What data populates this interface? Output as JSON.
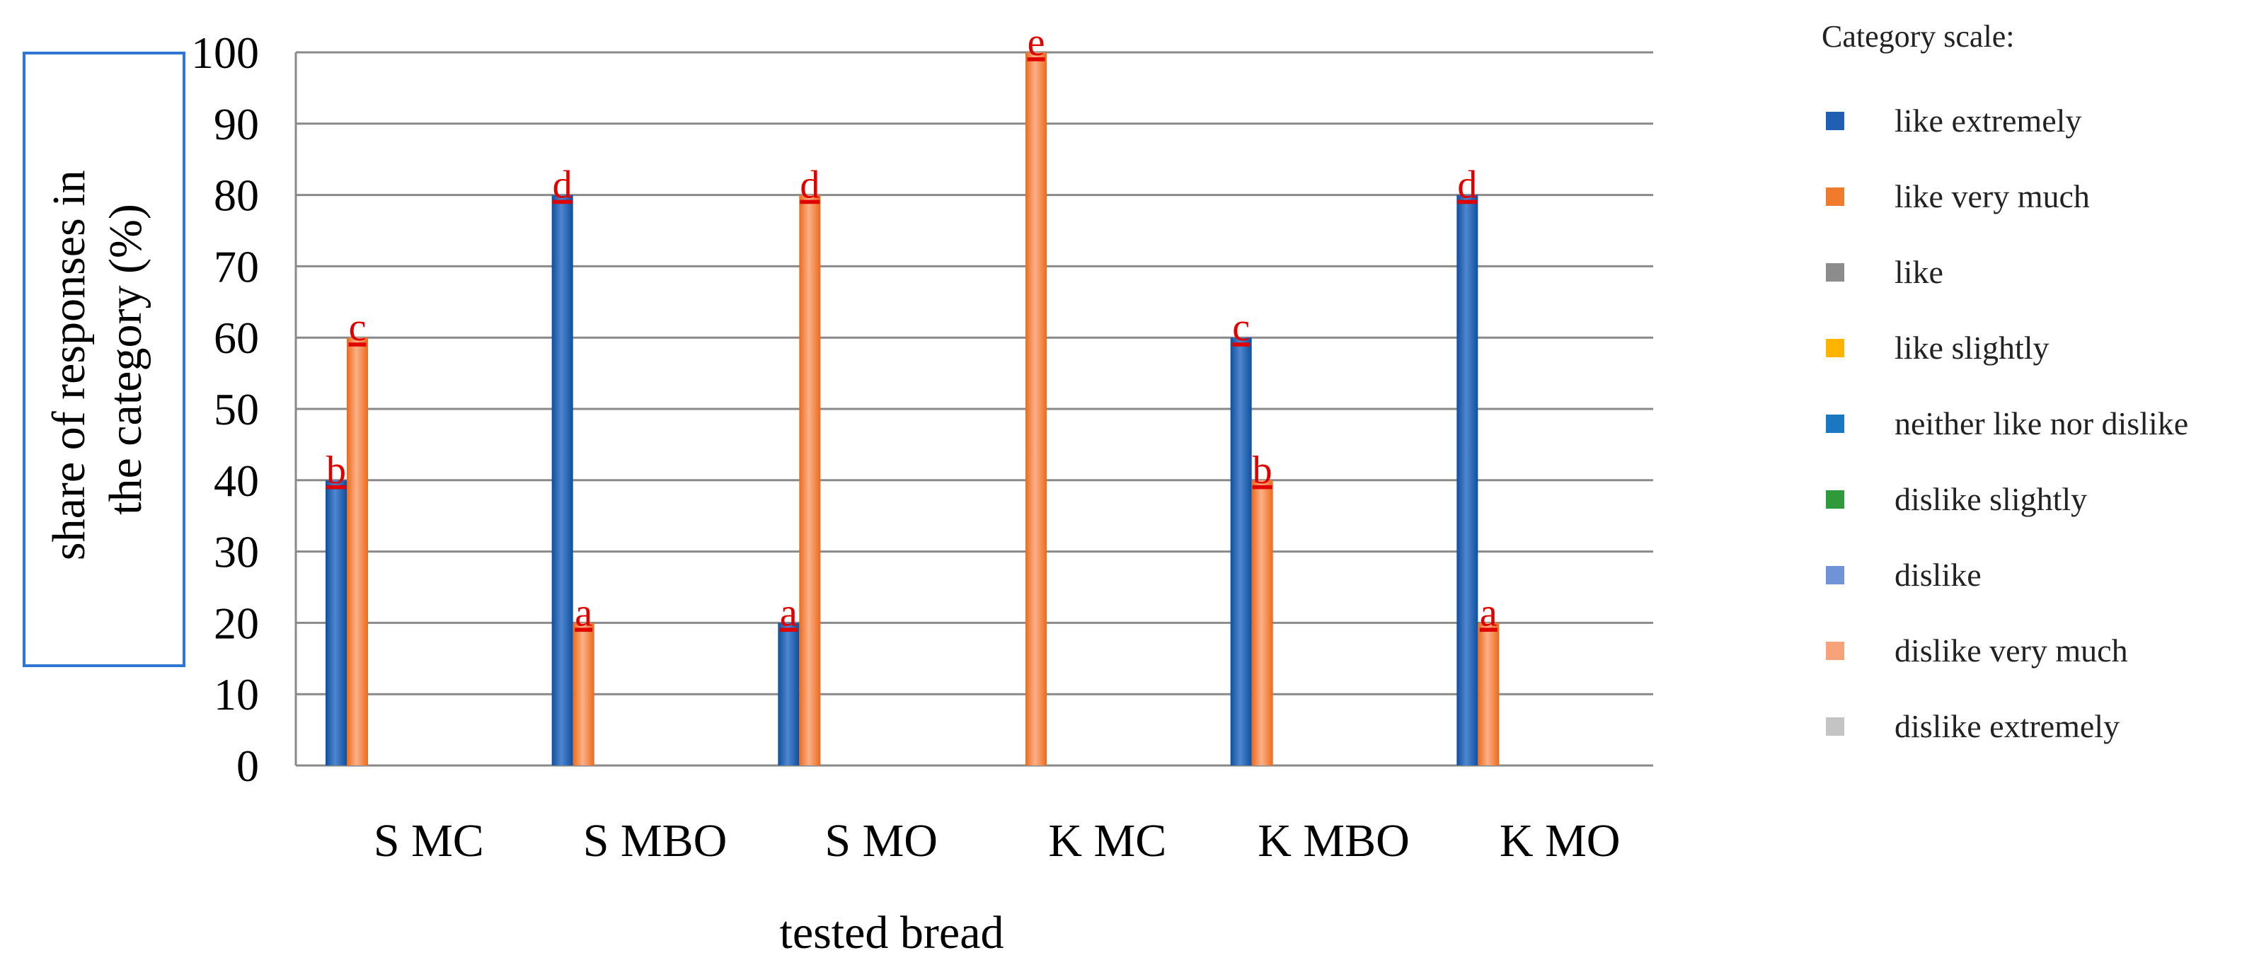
{
  "chart_data": {
    "type": "bar",
    "title": "",
    "xlabel": "tested bread",
    "ylabel": "share of responses in the category (%)",
    "ylim": [
      0,
      100
    ],
    "yticks": [
      0,
      10,
      20,
      30,
      40,
      50,
      60,
      70,
      80,
      90,
      100
    ],
    "categories": [
      "S MC",
      "S MBO",
      "S MO",
      "K MC",
      "K MBO",
      "K MO"
    ],
    "legend_title": "Category scale:",
    "legend_position": "right",
    "series": [
      {
        "name": "like extremely",
        "color": "#1f5fb4",
        "values": [
          40,
          80,
          20,
          0,
          60,
          80
        ],
        "labels": [
          "b",
          "d",
          "a",
          "",
          "c",
          "d"
        ]
      },
      {
        "name": "like very much",
        "color": "#f07b2c",
        "values": [
          60,
          20,
          80,
          100,
          40,
          20
        ],
        "labels": [
          "c",
          "a",
          "d",
          "e",
          "b",
          "a"
        ]
      },
      {
        "name": "like",
        "color": "#8c8c8c",
        "values": [
          0,
          0,
          0,
          0,
          0,
          0
        ],
        "labels": [
          "",
          "",
          "",
          "",
          "",
          ""
        ]
      },
      {
        "name": "like slightly",
        "color": "#ffb400",
        "values": [
          0,
          0,
          0,
          0,
          0,
          0
        ],
        "labels": [
          "",
          "",
          "",
          "",
          "",
          ""
        ]
      },
      {
        "name": "neither like nor dislike",
        "color": "#1a78c2",
        "values": [
          0,
          0,
          0,
          0,
          0,
          0
        ],
        "labels": [
          "",
          "",
          "",
          "",
          "",
          ""
        ]
      },
      {
        "name": "dislike slightly",
        "color": "#2e9a3a",
        "values": [
          0,
          0,
          0,
          0,
          0,
          0
        ],
        "labels": [
          "",
          "",
          "",
          "",
          "",
          ""
        ]
      },
      {
        "name": "dislike",
        "color": "#6f93d6",
        "values": [
          0,
          0,
          0,
          0,
          0,
          0
        ],
        "labels": [
          "",
          "",
          "",
          "",
          "",
          ""
        ]
      },
      {
        "name": "dislike very much",
        "color": "#f7a27a",
        "values": [
          0,
          0,
          0,
          0,
          0,
          0
        ],
        "labels": [
          "",
          "",
          "",
          "",
          "",
          ""
        ]
      },
      {
        "name": "dislike extremely",
        "color": "#c4c4c4",
        "values": [
          0,
          0,
          0,
          0,
          0,
          0
        ],
        "labels": [
          "",
          "",
          "",
          "",
          "",
          ""
        ]
      }
    ]
  }
}
